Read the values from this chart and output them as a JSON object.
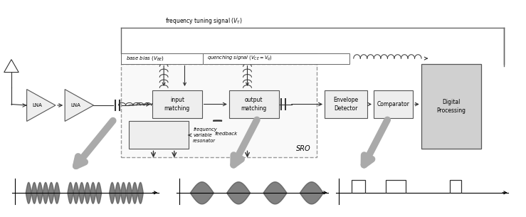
{
  "fig_width": 7.39,
  "fig_height": 3.05,
  "bg_color": "#ffffff",
  "colors": {
    "box_edge": "#555555",
    "box_face": "#eeeeee",
    "digital_face": "#cccccc",
    "arrow_gray": "#aaaaaa",
    "line_dark": "#333333",
    "line_mid": "#666666",
    "dashed_box": "#999999",
    "signal_line": "#000000"
  },
  "freq_tuning_label": "frequency tuning signal (V_T)",
  "base_bias_label": "base bias (V_BE)",
  "quenching_label": "quenching signal (V_CE = V_q)",
  "feedback_label": "feedback",
  "freq_var_label": "frequency\nvariable\nresonator",
  "sro_label": "SRO",
  "lna_label": "LNA",
  "input_matching_label": "input\nmatching",
  "output_matching_label": "output\nmatching",
  "envelope_label": "Envelope\nDetector",
  "comparator_label": "Comparator",
  "digital_label": "Digital\nProcessing"
}
